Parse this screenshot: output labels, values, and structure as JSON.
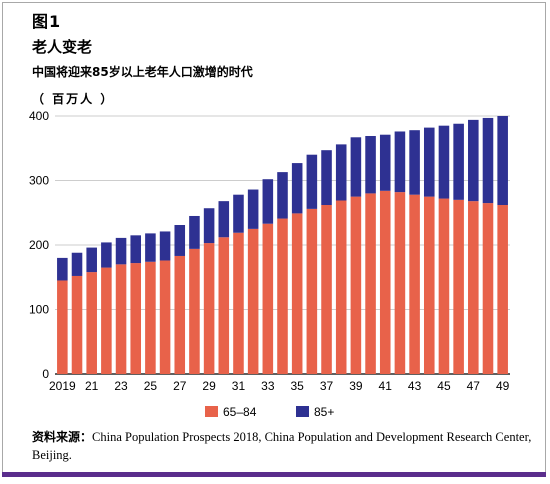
{
  "figure_label": "图1",
  "chart_data": {
    "type": "bar",
    "stacked": true,
    "title": "老人变老",
    "subtitle": "中国将迎来85岁以上老年人口激增的时代",
    "unit": "（ 百万人 ）",
    "categories": [
      "2019",
      "20",
      "21",
      "22",
      "23",
      "24",
      "25",
      "26",
      "27",
      "28",
      "29",
      "30",
      "31",
      "32",
      "33",
      "34",
      "35",
      "36",
      "37",
      "38",
      "39",
      "40",
      "41",
      "42",
      "43",
      "44",
      "45",
      "46",
      "47",
      "48",
      "49"
    ],
    "x_tick_labels": [
      "2019",
      "21",
      "23",
      "25",
      "27",
      "29",
      "31",
      "33",
      "35",
      "37",
      "39",
      "41",
      "43",
      "45",
      "47",
      "49"
    ],
    "ylim": [
      0,
      400
    ],
    "y_ticks": [
      0,
      100,
      200,
      300,
      400
    ],
    "grid": "horizontal",
    "legend_position": "bottom",
    "series": [
      {
        "name": "65–84",
        "color": "#e8624a",
        "values": [
          145,
          152,
          158,
          165,
          170,
          172,
          174,
          176,
          183,
          194,
          203,
          212,
          219,
          225,
          233,
          241,
          249,
          256,
          262,
          269,
          275,
          280,
          284,
          282,
          278,
          275,
          272,
          270,
          268,
          265,
          262
        ]
      },
      {
        "name": "85+",
        "color": "#2e3192",
        "values": [
          35,
          36,
          38,
          39,
          41,
          43,
          44,
          45,
          48,
          51,
          54,
          56,
          59,
          61,
          69,
          72,
          78,
          84,
          85,
          87,
          92,
          89,
          87,
          94,
          100,
          107,
          113,
          118,
          126,
          132,
          138
        ]
      }
    ]
  },
  "source": {
    "label": "资料来源：",
    "text": "China Population Prospects 2018, China Population and Development Research Center, Beijing."
  },
  "colors": {
    "bottom_rule": "#5a2d8c",
    "frame": "#a8a8a8"
  }
}
